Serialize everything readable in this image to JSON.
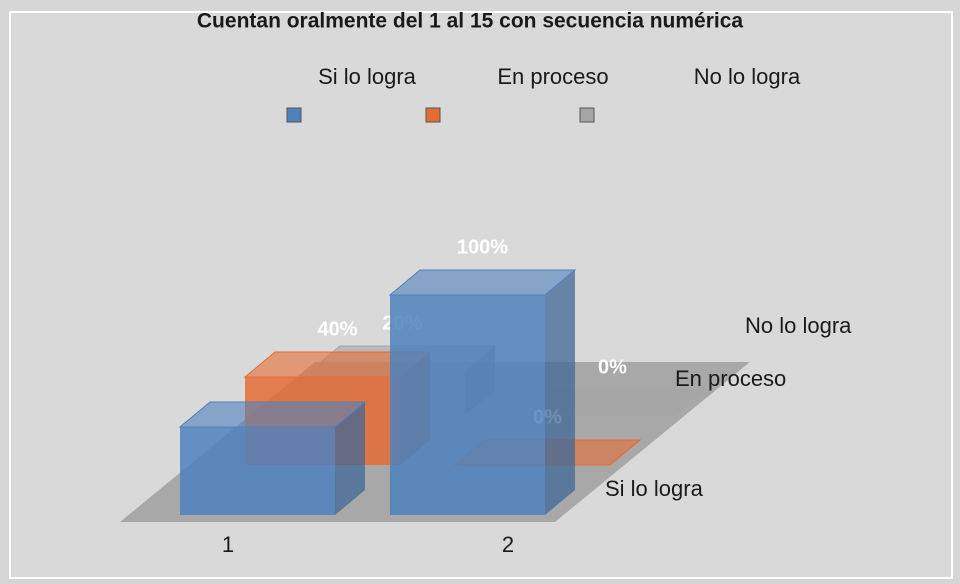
{
  "chart_data": {
    "type": "bar3d",
    "title": "Cuentan oralmente del 1 al 15 con secuencia numérica",
    "categories": [
      "1",
      "2"
    ],
    "series": [
      {
        "name": "Si lo logra",
        "color": "#4f81bd",
        "values": [
          40,
          100
        ],
        "value_labels": [
          null,
          "100%"
        ]
      },
      {
        "name": "En proceso",
        "color": "#e46c34",
        "values": [
          40,
          0
        ],
        "value_labels": [
          "40%",
          "0%"
        ]
      },
      {
        "name": "No lo logra",
        "color": "#a5a5a5",
        "values": [
          20,
          0
        ],
        "value_labels": [
          "20%",
          "0%"
        ]
      }
    ]
  }
}
